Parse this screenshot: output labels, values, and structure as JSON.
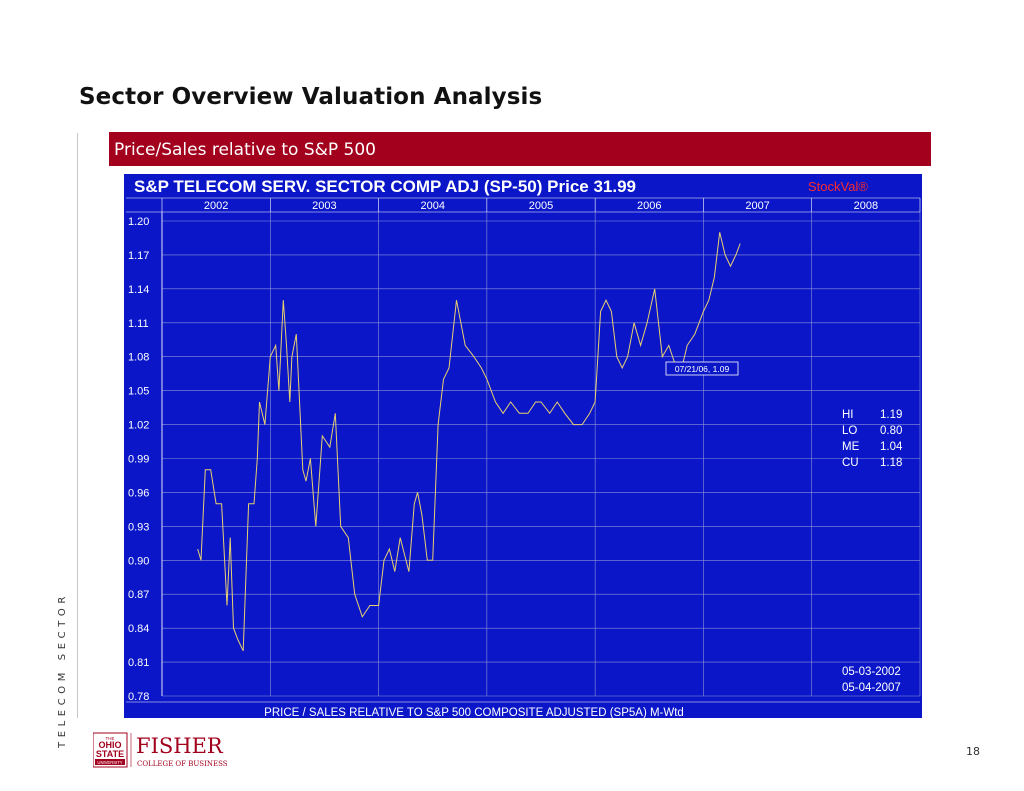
{
  "slide": {
    "title": "Sector Overview Valuation Analysis",
    "banner": "Price/Sales relative to S&P 500",
    "side_label": "TELECOM SECTOR",
    "page_number": "18",
    "banner_color": "#a2001d"
  },
  "logo": {
    "top_text": "THE",
    "university": "OHIO STATE UNIVERSITY",
    "name": "FISHER",
    "sub": "COLLEGE OF BUSINESS"
  },
  "chart_data": {
    "type": "line",
    "title": "S&P TELECOM SERV. SECTOR COMP ADJ (SP-50)  Price 31.99",
    "brand": "StockVal®",
    "xlabel": "PRICE / SALES RELATIVE TO S&P 500 COMPOSITE ADJUSTED (SP5A) M-Wtd",
    "years": [
      "2002",
      "2003",
      "2004",
      "2005",
      "2006",
      "2007",
      "2008"
    ],
    "y_ticks": [
      "1.20",
      "1.17",
      "1.14",
      "1.11",
      "1.08",
      "1.05",
      "1.02",
      "0.99",
      "0.96",
      "0.93",
      "0.90",
      "0.87",
      "0.84",
      "0.81",
      "0.78"
    ],
    "ylim": [
      0.78,
      1.2
    ],
    "xlim": [
      2002.0,
      2009.0
    ],
    "grid": true,
    "background": "#0a16c8",
    "line_color": "#e8d070",
    "annotation": "07/21/06, 1.09",
    "stats": [
      {
        "label": "HI",
        "value": "1.19"
      },
      {
        "label": "LO",
        "value": "0.80"
      },
      {
        "label": "ME",
        "value": "1.04"
      },
      {
        "label": "CU",
        "value": "1.18"
      }
    ],
    "date_range": [
      "05-03-2002",
      "05-04-2007"
    ],
    "series": [
      {
        "x": [
          2002.33,
          2002.36,
          2002.4,
          2002.45,
          2002.5,
          2002.55,
          2002.6,
          2002.63,
          2002.66,
          2002.7,
          2002.75,
          2002.8,
          2002.85,
          2002.88,
          2002.9,
          2002.95,
          2003.0,
          2003.05,
          2003.08,
          2003.12,
          2003.15,
          2003.18,
          2003.2,
          2003.24,
          2003.3,
          2003.33,
          2003.37,
          2003.42,
          2003.48,
          2003.55,
          2003.6,
          2003.65,
          2003.72,
          2003.78,
          2003.85,
          2003.92,
          2004.0,
          2004.05,
          2004.1,
          2004.15,
          2004.2,
          2004.28,
          2004.33,
          2004.36,
          2004.4,
          2004.45,
          2004.5,
          2004.55,
          2004.6,
          2004.65,
          2004.72,
          2004.8,
          2004.88,
          2004.95,
          2005.0,
          2005.08,
          2005.15,
          2005.22,
          2005.3,
          2005.38,
          2005.45,
          2005.5,
          2005.58,
          2005.65,
          2005.72,
          2005.8,
          2005.88,
          2005.95,
          2006.0,
          2006.05,
          2006.1,
          2006.15,
          2006.2,
          2006.25,
          2006.3,
          2006.36,
          2006.42,
          2006.48,
          2006.55,
          2006.62,
          2006.68,
          2006.75,
          2006.8,
          2006.85,
          2006.92,
          2007.0,
          2007.05,
          2007.1,
          2007.15,
          2007.2,
          2007.25,
          2007.3,
          2007.34
        ],
        "y": [
          0.91,
          0.9,
          0.98,
          0.98,
          0.95,
          0.95,
          0.86,
          0.92,
          0.84,
          0.83,
          0.82,
          0.95,
          0.95,
          0.99,
          1.04,
          1.02,
          1.08,
          1.09,
          1.05,
          1.13,
          1.09,
          1.04,
          1.08,
          1.1,
          0.98,
          0.97,
          0.99,
          0.93,
          1.01,
          1.0,
          1.03,
          0.93,
          0.92,
          0.87,
          0.85,
          0.86,
          0.86,
          0.9,
          0.91,
          0.89,
          0.92,
          0.89,
          0.95,
          0.96,
          0.94,
          0.9,
          0.9,
          1.02,
          1.06,
          1.07,
          1.13,
          1.09,
          1.08,
          1.07,
          1.06,
          1.04,
          1.03,
          1.04,
          1.03,
          1.03,
          1.04,
          1.04,
          1.03,
          1.04,
          1.03,
          1.02,
          1.02,
          1.03,
          1.04,
          1.12,
          1.13,
          1.12,
          1.08,
          1.07,
          1.08,
          1.11,
          1.09,
          1.11,
          1.14,
          1.08,
          1.09,
          1.07,
          1.07,
          1.09,
          1.1,
          1.12,
          1.13,
          1.15,
          1.19,
          1.17,
          1.16,
          1.17,
          1.18
        ]
      }
    ]
  }
}
